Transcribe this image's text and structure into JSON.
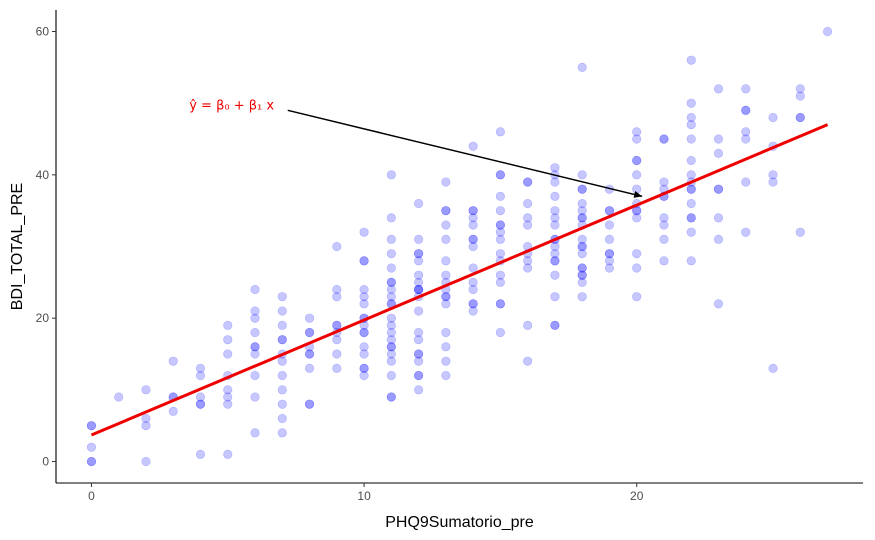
{
  "chart_data": {
    "type": "scatter",
    "title": "",
    "xlabel": "PHQ9Sumatorio_pre",
    "ylabel": "BDI_TOTAL_PRE",
    "xlim": [
      -1.3,
      28.3
    ],
    "ylim": [
      -3,
      63
    ],
    "x_ticks": [
      0,
      10,
      20
    ],
    "y_ticks": [
      0,
      20,
      40,
      60
    ],
    "grid": false,
    "legend": "none",
    "point_color": "#0000ff",
    "point_opacity": 0.22,
    "fit_line": {
      "color": "#ee0000",
      "x": [
        0,
        27
      ],
      "y": [
        3.7,
        47.0
      ]
    },
    "annotation": {
      "text": "ŷ = β₀ + β₁ x",
      "color": "#ee0000",
      "arrow_color": "#000000",
      "text_at": [
        6.7,
        49.7
      ],
      "arrow_from": [
        7.2,
        49.0
      ],
      "arrow_to": [
        20.2,
        37.0
      ]
    },
    "points": [
      [
        0,
        0
      ],
      [
        0,
        0
      ],
      [
        0,
        2
      ],
      [
        0,
        5
      ],
      [
        0,
        5
      ],
      [
        1,
        9
      ],
      [
        2,
        0
      ],
      [
        2,
        5
      ],
      [
        2,
        6
      ],
      [
        2,
        10
      ],
      [
        3,
        7
      ],
      [
        3,
        9
      ],
      [
        3,
        9
      ],
      [
        3,
        14
      ],
      [
        4,
        1
      ],
      [
        4,
        8
      ],
      [
        4,
        8
      ],
      [
        4,
        9
      ],
      [
        4,
        12
      ],
      [
        4,
        13
      ],
      [
        5,
        1
      ],
      [
        5,
        8
      ],
      [
        5,
        9
      ],
      [
        5,
        10
      ],
      [
        5,
        12
      ],
      [
        5,
        15
      ],
      [
        5,
        17
      ],
      [
        5,
        19
      ],
      [
        6,
        4
      ],
      [
        6,
        9
      ],
      [
        6,
        12
      ],
      [
        6,
        15
      ],
      [
        6,
        16
      ],
      [
        6,
        16
      ],
      [
        6,
        18
      ],
      [
        6,
        20
      ],
      [
        6,
        21
      ],
      [
        6,
        24
      ],
      [
        7,
        4
      ],
      [
        7,
        6
      ],
      [
        7,
        8
      ],
      [
        7,
        10
      ],
      [
        7,
        12
      ],
      [
        7,
        14
      ],
      [
        7,
        15
      ],
      [
        7,
        17
      ],
      [
        7,
        17
      ],
      [
        7,
        19
      ],
      [
        7,
        21
      ],
      [
        7,
        23
      ],
      [
        8,
        8
      ],
      [
        8,
        8
      ],
      [
        8,
        13
      ],
      [
        8,
        15
      ],
      [
        8,
        15
      ],
      [
        8,
        16
      ],
      [
        8,
        18
      ],
      [
        8,
        18
      ],
      [
        8,
        20
      ],
      [
        9,
        13
      ],
      [
        9,
        15
      ],
      [
        9,
        17
      ],
      [
        9,
        18
      ],
      [
        9,
        19
      ],
      [
        9,
        19
      ],
      [
        9,
        23
      ],
      [
        9,
        24
      ],
      [
        9,
        30
      ],
      [
        10,
        12
      ],
      [
        10,
        13
      ],
      [
        10,
        13
      ],
      [
        10,
        15
      ],
      [
        10,
        16
      ],
      [
        10,
        18
      ],
      [
        10,
        18
      ],
      [
        10,
        19
      ],
      [
        10,
        20
      ],
      [
        10,
        20
      ],
      [
        10,
        22
      ],
      [
        10,
        23
      ],
      [
        10,
        24
      ],
      [
        10,
        28
      ],
      [
        10,
        28
      ],
      [
        10,
        32
      ],
      [
        11,
        9
      ],
      [
        11,
        9
      ],
      [
        11,
        12
      ],
      [
        11,
        14
      ],
      [
        11,
        15
      ],
      [
        11,
        16
      ],
      [
        11,
        16
      ],
      [
        11,
        17
      ],
      [
        11,
        18
      ],
      [
        11,
        19
      ],
      [
        11,
        20
      ],
      [
        11,
        22
      ],
      [
        11,
        22
      ],
      [
        11,
        23
      ],
      [
        11,
        24
      ],
      [
        11,
        25
      ],
      [
        11,
        25
      ],
      [
        11,
        27
      ],
      [
        11,
        29
      ],
      [
        11,
        31
      ],
      [
        11,
        34
      ],
      [
        11,
        40
      ],
      [
        12,
        10
      ],
      [
        12,
        12
      ],
      [
        12,
        12
      ],
      [
        12,
        14
      ],
      [
        12,
        15
      ],
      [
        12,
        15
      ],
      [
        12,
        17
      ],
      [
        12,
        18
      ],
      [
        12,
        21
      ],
      [
        12,
        23
      ],
      [
        12,
        24
      ],
      [
        12,
        24
      ],
      [
        12,
        24
      ],
      [
        12,
        25
      ],
      [
        12,
        26
      ],
      [
        12,
        28
      ],
      [
        12,
        29
      ],
      [
        12,
        29
      ],
      [
        12,
        31
      ],
      [
        12,
        36
      ],
      [
        13,
        12
      ],
      [
        13,
        14
      ],
      [
        13,
        16
      ],
      [
        13,
        18
      ],
      [
        13,
        22
      ],
      [
        13,
        23
      ],
      [
        13,
        23
      ],
      [
        13,
        24
      ],
      [
        13,
        25
      ],
      [
        13,
        26
      ],
      [
        13,
        28
      ],
      [
        13,
        31
      ],
      [
        13,
        33
      ],
      [
        13,
        35
      ],
      [
        13,
        35
      ],
      [
        13,
        39
      ],
      [
        14,
        21
      ],
      [
        14,
        22
      ],
      [
        14,
        22
      ],
      [
        14,
        24
      ],
      [
        14,
        25
      ],
      [
        14,
        27
      ],
      [
        14,
        30
      ],
      [
        14,
        31
      ],
      [
        14,
        31
      ],
      [
        14,
        33
      ],
      [
        14,
        34
      ],
      [
        14,
        35
      ],
      [
        14,
        35
      ],
      [
        14,
        44
      ],
      [
        15,
        18
      ],
      [
        15,
        22
      ],
      [
        15,
        22
      ],
      [
        15,
        25
      ],
      [
        15,
        26
      ],
      [
        15,
        28
      ],
      [
        15,
        29
      ],
      [
        15,
        31
      ],
      [
        15,
        32
      ],
      [
        15,
        33
      ],
      [
        15,
        33
      ],
      [
        15,
        35
      ],
      [
        15,
        37
      ],
      [
        15,
        40
      ],
      [
        15,
        40
      ],
      [
        15,
        46
      ],
      [
        16,
        14
      ],
      [
        16,
        19
      ],
      [
        16,
        27
      ],
      [
        16,
        28
      ],
      [
        16,
        29
      ],
      [
        16,
        30
      ],
      [
        16,
        33
      ],
      [
        16,
        34
      ],
      [
        16,
        36
      ],
      [
        16,
        39
      ],
      [
        16,
        39
      ],
      [
        17,
        19
      ],
      [
        17,
        19
      ],
      [
        17,
        23
      ],
      [
        17,
        26
      ],
      [
        17,
        28
      ],
      [
        17,
        28
      ],
      [
        17,
        29
      ],
      [
        17,
        30
      ],
      [
        17,
        31
      ],
      [
        17,
        31
      ],
      [
        17,
        33
      ],
      [
        17,
        34
      ],
      [
        17,
        35
      ],
      [
        17,
        37
      ],
      [
        17,
        39
      ],
      [
        17,
        40
      ],
      [
        17,
        41
      ],
      [
        18,
        23
      ],
      [
        18,
        25
      ],
      [
        18,
        26
      ],
      [
        18,
        26
      ],
      [
        18,
        27
      ],
      [
        18,
        27
      ],
      [
        18,
        29
      ],
      [
        18,
        30
      ],
      [
        18,
        30
      ],
      [
        18,
        31
      ],
      [
        18,
        33
      ],
      [
        18,
        34
      ],
      [
        18,
        34
      ],
      [
        18,
        35
      ],
      [
        18,
        36
      ],
      [
        18,
        38
      ],
      [
        18,
        38
      ],
      [
        18,
        40
      ],
      [
        18,
        55
      ],
      [
        19,
        27
      ],
      [
        19,
        28
      ],
      [
        19,
        29
      ],
      [
        19,
        29
      ],
      [
        19,
        31
      ],
      [
        19,
        33
      ],
      [
        19,
        35
      ],
      [
        19,
        35
      ],
      [
        19,
        38
      ],
      [
        20,
        23
      ],
      [
        20,
        27
      ],
      [
        20,
        29
      ],
      [
        20,
        34
      ],
      [
        20,
        35
      ],
      [
        20,
        35
      ],
      [
        20,
        36
      ],
      [
        20,
        38
      ],
      [
        20,
        40
      ],
      [
        20,
        42
      ],
      [
        20,
        42
      ],
      [
        20,
        45
      ],
      [
        20,
        46
      ],
      [
        21,
        28
      ],
      [
        21,
        31
      ],
      [
        21,
        33
      ],
      [
        21,
        34
      ],
      [
        21,
        37
      ],
      [
        21,
        37
      ],
      [
        21,
        38
      ],
      [
        21,
        39
      ],
      [
        21,
        45
      ],
      [
        21,
        45
      ],
      [
        22,
        28
      ],
      [
        22,
        32
      ],
      [
        22,
        34
      ],
      [
        22,
        34
      ],
      [
        22,
        36
      ],
      [
        22,
        38
      ],
      [
        22,
        38
      ],
      [
        22,
        39
      ],
      [
        22,
        40
      ],
      [
        22,
        42
      ],
      [
        22,
        45
      ],
      [
        22,
        47
      ],
      [
        22,
        48
      ],
      [
        22,
        50
      ],
      [
        22,
        56
      ],
      [
        23,
        22
      ],
      [
        23,
        31
      ],
      [
        23,
        34
      ],
      [
        23,
        38
      ],
      [
        23,
        38
      ],
      [
        23,
        43
      ],
      [
        23,
        45
      ],
      [
        23,
        52
      ],
      [
        24,
        32
      ],
      [
        24,
        39
      ],
      [
        24,
        45
      ],
      [
        24,
        46
      ],
      [
        24,
        49
      ],
      [
        24,
        49
      ],
      [
        24,
        52
      ],
      [
        25,
        13
      ],
      [
        25,
        39
      ],
      [
        25,
        40
      ],
      [
        25,
        44
      ],
      [
        25,
        48
      ],
      [
        26,
        32
      ],
      [
        26,
        48
      ],
      [
        26,
        48
      ],
      [
        26,
        51
      ],
      [
        26,
        52
      ],
      [
        27,
        60
      ]
    ]
  }
}
